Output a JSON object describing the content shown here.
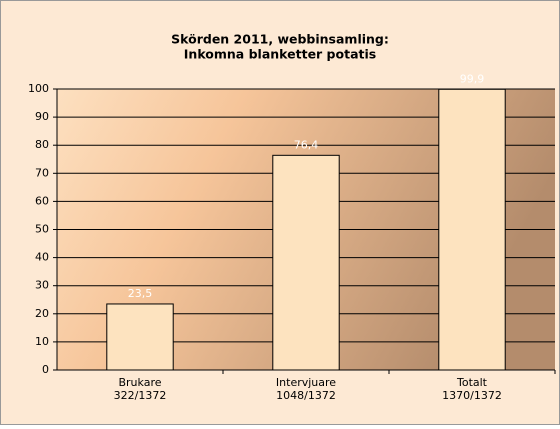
{
  "chart_data": {
    "type": "bar",
    "title": [
      "Skörden 2011, webbinsamling:",
      "Inkomna blanketter potatis"
    ],
    "categories": [
      [
        "Brukare",
        "322/1372"
      ],
      [
        "Intervjuare",
        "1048/1372"
      ],
      [
        "Totalt",
        "1370/1372"
      ]
    ],
    "values": [
      23.5,
      76.4,
      99.9
    ],
    "value_labels": [
      "23,5",
      "76,4",
      "99,9"
    ],
    "color": "#fde3bf",
    "ylim": [
      0,
      100
    ],
    "yticks": [
      0,
      10,
      20,
      30,
      40,
      50,
      60,
      70,
      80,
      90,
      100
    ],
    "grid": true
  }
}
